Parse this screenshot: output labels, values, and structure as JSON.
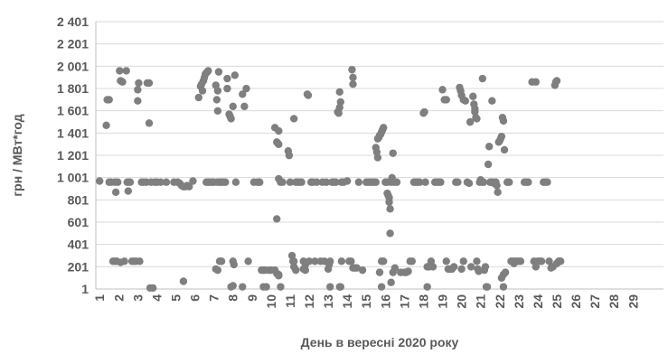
{
  "chart_data": {
    "type": "scatter",
    "ylabel": "грн / МВт*год",
    "xlabel": "День в вересні 2020 року",
    "y_ticks": [
      "1",
      "201",
      "401",
      "601",
      "801",
      "1 001",
      "1 201",
      "1 401",
      "1 601",
      "1 801",
      "2 001",
      "2 201",
      "2 401"
    ],
    "y_tick_values": [
      1,
      201,
      401,
      601,
      801,
      1001,
      1201,
      1401,
      1601,
      1801,
      2001,
      2201,
      2401
    ],
    "ylim": [
      1,
      2401
    ],
    "x_ticks": [
      "1",
      "2",
      "3",
      "4",
      "5",
      "6",
      "7",
      "8",
      "9",
      "10",
      "11",
      "12",
      "13",
      "14",
      "15",
      "16",
      "17",
      "18",
      "19",
      "20",
      "21",
      "22",
      "23",
      "24",
      "25",
      "26",
      "27",
      "28",
      "29"
    ],
    "xlim": [
      0.8,
      30.6
    ],
    "grid": "horizontal",
    "point_color": "#7f7f7f",
    "points": [
      [
        1.0,
        970
      ],
      [
        1.4,
        1700
      ],
      [
        1.5,
        1700
      ],
      [
        1.35,
        1470
      ],
      [
        1.5,
        960
      ],
      [
        1.6,
        960
      ],
      [
        1.8,
        960
      ],
      [
        1.85,
        870
      ],
      [
        1.7,
        250
      ],
      [
        1.8,
        250
      ],
      [
        1.9,
        250
      ],
      [
        1.95,
        960
      ],
      [
        2.05,
        1960
      ],
      [
        2.1,
        1870
      ],
      [
        2.2,
        1860
      ],
      [
        2.3,
        250
      ],
      [
        2.1,
        240
      ],
      [
        2.4,
        1960
      ],
      [
        2.45,
        960
      ],
      [
        2.5,
        880
      ],
      [
        2.5,
        960
      ],
      [
        2.6,
        960
      ],
      [
        2.7,
        250
      ],
      [
        2.8,
        250
      ],
      [
        2.9,
        250
      ],
      [
        3.0,
        1790
      ],
      [
        3.05,
        1850
      ],
      [
        3.0,
        1690
      ],
      [
        3.1,
        250
      ],
      [
        3.2,
        960
      ],
      [
        3.3,
        960
      ],
      [
        3.45,
        960
      ],
      [
        3.5,
        1850
      ],
      [
        3.6,
        1850
      ],
      [
        3.6,
        1490
      ],
      [
        3.7,
        960
      ],
      [
        3.65,
        10
      ],
      [
        3.8,
        10
      ],
      [
        3.9,
        960
      ],
      [
        4.0,
        960
      ],
      [
        4.2,
        960
      ],
      [
        4.5,
        960
      ],
      [
        4.9,
        960
      ],
      [
        5.1,
        960
      ],
      [
        5.2,
        950
      ],
      [
        5.3,
        930
      ],
      [
        5.4,
        920
      ],
      [
        5.5,
        920
      ],
      [
        5.6,
        930
      ],
      [
        5.7,
        920
      ],
      [
        5.4,
        70
      ],
      [
        5.9,
        970
      ],
      [
        6.2,
        1720
      ],
      [
        6.3,
        1820
      ],
      [
        6.35,
        1840
      ],
      [
        6.4,
        1780
      ],
      [
        6.45,
        1870
      ],
      [
        6.5,
        1900
      ],
      [
        6.55,
        1930
      ],
      [
        6.6,
        1940
      ],
      [
        6.65,
        1950
      ],
      [
        6.7,
        1960
      ],
      [
        6.6,
        960
      ],
      [
        6.7,
        960
      ],
      [
        6.8,
        960
      ],
      [
        6.9,
        960
      ],
      [
        7.0,
        960
      ],
      [
        7.1,
        1830
      ],
      [
        7.15,
        1700
      ],
      [
        7.2,
        1600
      ],
      [
        7.2,
        1780
      ],
      [
        7.25,
        1950
      ],
      [
        7.2,
        960
      ],
      [
        7.3,
        960
      ],
      [
        7.1,
        180
      ],
      [
        7.2,
        170
      ],
      [
        7.3,
        250
      ],
      [
        7.35,
        250
      ],
      [
        7.4,
        250
      ],
      [
        7.4,
        960
      ],
      [
        7.5,
        960
      ],
      [
        7.6,
        960
      ],
      [
        7.7,
        1890
      ],
      [
        7.7,
        1800
      ],
      [
        7.8,
        1570
      ],
      [
        7.85,
        1550
      ],
      [
        7.9,
        1530
      ],
      [
        7.9,
        20
      ],
      [
        8.0,
        1640
      ],
      [
        8.0,
        250
      ],
      [
        8.05,
        220
      ],
      [
        8.1,
        1920
      ],
      [
        8.15,
        960
      ],
      [
        8.0,
        30
      ],
      [
        8.5,
        1750
      ],
      [
        8.6,
        1640
      ],
      [
        8.7,
        1800
      ],
      [
        8.5,
        20
      ],
      [
        8.8,
        250
      ],
      [
        9.1,
        960
      ],
      [
        9.3,
        960
      ],
      [
        9.35,
        960
      ],
      [
        9.4,
        960
      ],
      [
        9.5,
        170
      ],
      [
        9.6,
        170
      ],
      [
        9.7,
        170
      ],
      [
        9.6,
        20
      ],
      [
        9.75,
        20
      ],
      [
        9.9,
        170
      ],
      [
        10.0,
        170
      ],
      [
        10.2,
        170
      ],
      [
        10.3,
        140
      ],
      [
        10.4,
        130
      ],
      [
        10.2,
        1450
      ],
      [
        10.3,
        1320
      ],
      [
        10.35,
        1310
      ],
      [
        10.4,
        1300
      ],
      [
        10.3,
        630
      ],
      [
        10.4,
        990
      ],
      [
        10.4,
        1420
      ],
      [
        10.5,
        960
      ],
      [
        10.6,
        960
      ],
      [
        10.4,
        120
      ],
      [
        10.5,
        20
      ],
      [
        10.9,
        1240
      ],
      [
        10.95,
        1200
      ],
      [
        11.0,
        960
      ],
      [
        11.1,
        300
      ],
      [
        11.15,
        250
      ],
      [
        11.2,
        250
      ],
      [
        11.2,
        1530
      ],
      [
        11.2,
        200
      ],
      [
        11.3,
        170
      ],
      [
        11.3,
        960
      ],
      [
        11.4,
        960
      ],
      [
        11.5,
        960
      ],
      [
        11.6,
        960
      ],
      [
        11.7,
        250
      ],
      [
        11.7,
        180
      ],
      [
        11.8,
        170
      ],
      [
        11.8,
        220
      ],
      [
        11.9,
        1750
      ],
      [
        11.95,
        1740
      ],
      [
        12.0,
        250
      ],
      [
        12.1,
        960
      ],
      [
        12.2,
        960
      ],
      [
        12.3,
        250
      ],
      [
        12.4,
        960
      ],
      [
        12.6,
        250
      ],
      [
        12.7,
        960
      ],
      [
        12.8,
        250
      ],
      [
        12.9,
        960
      ],
      [
        13.0,
        180
      ],
      [
        13.05,
        220
      ],
      [
        13.1,
        250
      ],
      [
        13.2,
        960
      ],
      [
        13.3,
        960
      ],
      [
        13.1,
        20
      ],
      [
        13.4,
        960
      ],
      [
        13.5,
        1590
      ],
      [
        13.55,
        1580
      ],
      [
        13.6,
        1630
      ],
      [
        13.65,
        1680
      ],
      [
        13.6,
        1770
      ],
      [
        13.7,
        960
      ],
      [
        13.7,
        250
      ],
      [
        13.6,
        20
      ],
      [
        13.65,
        20
      ],
      [
        13.8,
        960
      ],
      [
        14.0,
        970
      ],
      [
        14.1,
        250
      ],
      [
        14.2,
        250
      ],
      [
        14.25,
        1970
      ],
      [
        14.3,
        1900
      ],
      [
        14.3,
        1840
      ],
      [
        14.3,
        190
      ],
      [
        14.4,
        190
      ],
      [
        14.5,
        190
      ],
      [
        14.6,
        960
      ],
      [
        14.8,
        170
      ],
      [
        15.0,
        960
      ],
      [
        15.1,
        960
      ],
      [
        15.2,
        960
      ],
      [
        15.3,
        960
      ],
      [
        15.4,
        960
      ],
      [
        15.5,
        960
      ],
      [
        15.5,
        1270
      ],
      [
        15.55,
        1230
      ],
      [
        15.6,
        1180
      ],
      [
        15.6,
        1350
      ],
      [
        15.65,
        1360
      ],
      [
        15.7,
        1380
      ],
      [
        15.75,
        1390
      ],
      [
        15.8,
        1410
      ],
      [
        15.85,
        1430
      ],
      [
        15.9,
        1450
      ],
      [
        15.8,
        250
      ],
      [
        15.9,
        250
      ],
      [
        15.7,
        150
      ],
      [
        15.8,
        20
      ],
      [
        16.0,
        960
      ],
      [
        16.1,
        960
      ],
      [
        16.1,
        860
      ],
      [
        16.15,
        840
      ],
      [
        16.2,
        820
      ],
      [
        16.2,
        780
      ],
      [
        16.25,
        720
      ],
      [
        16.25,
        500
      ],
      [
        16.3,
        960
      ],
      [
        16.35,
        1000
      ],
      [
        16.4,
        1220
      ],
      [
        16.45,
        960
      ],
      [
        16.3,
        60
      ],
      [
        16.4,
        150
      ],
      [
        16.5,
        190
      ],
      [
        16.6,
        960
      ],
      [
        16.8,
        150
      ],
      [
        17.0,
        150
      ],
      [
        17.1,
        150
      ],
      [
        17.2,
        160
      ],
      [
        17.3,
        250
      ],
      [
        17.4,
        250
      ],
      [
        17.5,
        960
      ],
      [
        17.6,
        960
      ],
      [
        17.7,
        960
      ],
      [
        17.8,
        960
      ],
      [
        18.0,
        1580
      ],
      [
        18.05,
        1590
      ],
      [
        18.1,
        960
      ],
      [
        18.2,
        200
      ],
      [
        18.3,
        200
      ],
      [
        18.2,
        20
      ],
      [
        18.4,
        250
      ],
      [
        18.5,
        200
      ],
      [
        18.6,
        960
      ],
      [
        18.7,
        960
      ],
      [
        18.8,
        960
      ],
      [
        18.9,
        960
      ],
      [
        19.0,
        1790
      ],
      [
        19.1,
        1700
      ],
      [
        19.2,
        1700
      ],
      [
        19.2,
        250
      ],
      [
        19.3,
        180
      ],
      [
        19.4,
        180
      ],
      [
        19.5,
        180
      ],
      [
        19.6,
        200
      ],
      [
        19.7,
        960
      ],
      [
        19.8,
        960
      ],
      [
        19.9,
        1810
      ],
      [
        19.95,
        1780
      ],
      [
        20.0,
        1740
      ],
      [
        20.0,
        180
      ],
      [
        20.1,
        250
      ],
      [
        20.1,
        1700
      ],
      [
        20.2,
        1690
      ],
      [
        20.3,
        960
      ],
      [
        20.4,
        950
      ],
      [
        20.45,
        1500
      ],
      [
        20.5,
        200
      ],
      [
        20.6,
        1730
      ],
      [
        20.65,
        1660
      ],
      [
        20.7,
        1620
      ],
      [
        20.7,
        1590
      ],
      [
        20.75,
        1540
      ],
      [
        20.8,
        1530
      ],
      [
        20.8,
        250
      ],
      [
        20.85,
        180
      ],
      [
        20.9,
        160
      ],
      [
        20.95,
        960
      ],
      [
        21.0,
        980
      ],
      [
        21.1,
        1890
      ],
      [
        21.1,
        960
      ],
      [
        21.15,
        960
      ],
      [
        21.2,
        170
      ],
      [
        21.25,
        200
      ],
      [
        21.3,
        20
      ],
      [
        21.35,
        20
      ],
      [
        21.4,
        1120
      ],
      [
        21.45,
        1280
      ],
      [
        21.5,
        960
      ],
      [
        21.55,
        960
      ],
      [
        21.6,
        1690
      ],
      [
        21.65,
        960
      ],
      [
        21.7,
        950
      ],
      [
        21.8,
        960
      ],
      [
        21.85,
        930
      ],
      [
        21.9,
        870
      ],
      [
        21.95,
        1320
      ],
      [
        22.0,
        1330
      ],
      [
        22.05,
        1350
      ],
      [
        22.1,
        1370
      ],
      [
        22.15,
        1540
      ],
      [
        22.2,
        1510
      ],
      [
        22.25,
        1250
      ],
      [
        22.1,
        100
      ],
      [
        22.2,
        130
      ],
      [
        22.3,
        150
      ],
      [
        22.2,
        20
      ],
      [
        22.4,
        960
      ],
      [
        22.5,
        960
      ],
      [
        22.6,
        250
      ],
      [
        22.7,
        250
      ],
      [
        22.75,
        230
      ],
      [
        22.8,
        250
      ],
      [
        22.9,
        250
      ],
      [
        23.0,
        250
      ],
      [
        23.1,
        250
      ],
      [
        23.3,
        960
      ],
      [
        23.4,
        960
      ],
      [
        23.5,
        960
      ],
      [
        23.7,
        1860
      ],
      [
        23.9,
        1860
      ],
      [
        23.8,
        250
      ],
      [
        23.9,
        200
      ],
      [
        24.0,
        250
      ],
      [
        24.1,
        250
      ],
      [
        24.2,
        250
      ],
      [
        24.3,
        960
      ],
      [
        24.4,
        960
      ],
      [
        24.5,
        960
      ],
      [
        24.6,
        250
      ],
      [
        24.7,
        190
      ],
      [
        24.8,
        200
      ],
      [
        24.9,
        1830
      ],
      [
        24.95,
        1860
      ],
      [
        25.0,
        1870
      ],
      [
        25.0,
        230
      ],
      [
        25.1,
        250
      ],
      [
        25.15,
        250
      ],
      [
        25.2,
        250
      ]
    ]
  }
}
